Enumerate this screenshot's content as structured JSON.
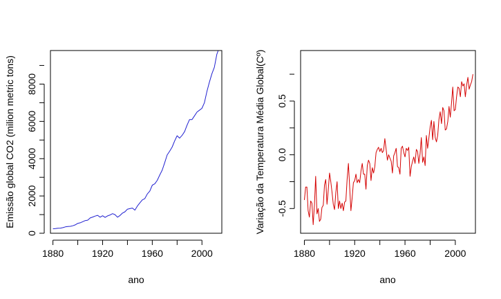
{
  "chart_data": [
    {
      "type": "line",
      "xlabel": "ano",
      "ylabel": "Emissão global CO2 (milion metric tons)",
      "xlim": [
        1878,
        2016
      ],
      "ylim": [
        0,
        9800
      ],
      "x_ticks": [
        1880,
        1920,
        1960,
        2000
      ],
      "x_tick_labels": [
        "1880",
        "1920",
        "1960",
        "2000"
      ],
      "y_ticks": [
        0,
        2000,
        4000,
        6000,
        8000
      ],
      "y_tick_labels": [
        "0",
        "2000",
        "4000",
        "6000",
        "8000"
      ],
      "series": [
        {
          "color": "#1f1fd0",
          "x": [
            1880,
            1882,
            1884,
            1886,
            1888,
            1890,
            1892,
            1894,
            1896,
            1898,
            1900,
            1902,
            1904,
            1906,
            1908,
            1910,
            1912,
            1914,
            1916,
            1918,
            1920,
            1922,
            1924,
            1926,
            1928,
            1930,
            1932,
            1934,
            1936,
            1938,
            1940,
            1942,
            1944,
            1946,
            1948,
            1950,
            1952,
            1954,
            1956,
            1958,
            1960,
            1962,
            1964,
            1966,
            1968,
            1970,
            1972,
            1974,
            1976,
            1978,
            1980,
            1982,
            1984,
            1986,
            1988,
            1990,
            1992,
            1994,
            1996,
            1998,
            2000,
            2002,
            2004,
            2006,
            2008,
            2010,
            2012,
            2013
          ],
          "values": [
            236,
            250,
            270,
            275,
            300,
            340,
            360,
            370,
            400,
            450,
            530,
            560,
            620,
            680,
            700,
            820,
            870,
            920,
            960,
            860,
            940,
            850,
            930,
            980,
            1050,
            1000,
            860,
            950,
            1080,
            1150,
            1290,
            1320,
            1350,
            1240,
            1460,
            1630,
            1790,
            1860,
            2110,
            2260,
            2580,
            2650,
            2840,
            3120,
            3380,
            3780,
            4200,
            4400,
            4620,
            4950,
            5230,
            5100,
            5250,
            5450,
            5800,
            6100,
            6100,
            6300,
            6500,
            6600,
            6700,
            7000,
            7600,
            8100,
            8550,
            8900,
            9600,
            9780
          ]
        }
      ]
    },
    {
      "type": "line",
      "xlabel": "ano",
      "ylabel": "Variação da Temperatura Média Global(Cº)",
      "xlim": [
        1877,
        2016
      ],
      "ylim": [
        -0.73,
        0.97
      ],
      "x_ticks": [
        1880,
        1920,
        1960,
        2000
      ],
      "x_tick_labels": [
        "1880",
        "1920",
        "1960",
        "2000"
      ],
      "y_ticks": [
        -0.5,
        0.0,
        0.5
      ],
      "y_tick_labels": [
        "-0.5",
        "0.0",
        "0.5"
      ],
      "series": [
        {
          "color": "#d40000",
          "x": [
            1880,
            1881,
            1882,
            1883,
            1884,
            1885,
            1886,
            1887,
            1888,
            1889,
            1890,
            1891,
            1892,
            1893,
            1894,
            1895,
            1896,
            1897,
            1898,
            1899,
            1900,
            1901,
            1902,
            1903,
            1904,
            1905,
            1906,
            1907,
            1908,
            1909,
            1910,
            1911,
            1912,
            1913,
            1914,
            1915,
            1916,
            1917,
            1918,
            1919,
            1920,
            1921,
            1922,
            1923,
            1924,
            1925,
            1926,
            1927,
            1928,
            1929,
            1930,
            1931,
            1932,
            1933,
            1934,
            1935,
            1936,
            1937,
            1938,
            1939,
            1940,
            1941,
            1942,
            1943,
            1944,
            1945,
            1946,
            1947,
            1948,
            1949,
            1950,
            1951,
            1952,
            1953,
            1954,
            1955,
            1956,
            1957,
            1958,
            1959,
            1960,
            1961,
            1962,
            1963,
            1964,
            1965,
            1966,
            1967,
            1968,
            1969,
            1970,
            1971,
            1972,
            1973,
            1974,
            1975,
            1976,
            1977,
            1978,
            1979,
            1980,
            1981,
            1982,
            1983,
            1984,
            1985,
            1986,
            1987,
            1988,
            1989,
            1990,
            1991,
            1992,
            1993,
            1994,
            1995,
            1996,
            1997,
            1998,
            1999,
            2000,
            2001,
            2002,
            2003,
            2004,
            2005,
            2006,
            2007,
            2008,
            2009,
            2010,
            2011,
            2012,
            2013,
            2014
          ],
          "values": [
            -0.42,
            -0.3,
            -0.3,
            -0.52,
            -0.58,
            -0.43,
            -0.45,
            -0.65,
            -0.47,
            -0.2,
            -0.55,
            -0.5,
            -0.62,
            -0.6,
            -0.49,
            -0.47,
            -0.28,
            -0.23,
            -0.46,
            -0.33,
            -0.17,
            -0.25,
            -0.35,
            -0.46,
            -0.51,
            -0.35,
            -0.25,
            -0.5,
            -0.43,
            -0.5,
            -0.45,
            -0.52,
            -0.44,
            -0.43,
            -0.23,
            -0.08,
            -0.3,
            -0.52,
            -0.4,
            -0.26,
            -0.24,
            -0.18,
            -0.26,
            -0.23,
            -0.26,
            -0.15,
            -0.08,
            -0.18,
            -0.18,
            -0.32,
            -0.1,
            -0.05,
            -0.08,
            -0.24,
            -0.12,
            -0.17,
            -0.11,
            0.02,
            0.05,
            0.07,
            0.03,
            0.06,
            0.02,
            0.04,
            0.15,
            0.05,
            -0.05,
            0.0,
            -0.03,
            -0.06,
            -0.17,
            -0.01,
            0.02,
            0.06,
            -0.11,
            -0.12,
            -0.18,
            0.06,
            0.08,
            0.02,
            -0.02,
            0.06,
            0.04,
            0.07,
            -0.2,
            -0.11,
            -0.06,
            -0.02,
            -0.08,
            0.05,
            0.03,
            -0.08,
            0.01,
            0.16,
            -0.07,
            -0.02,
            -0.1,
            0.18,
            0.06,
            0.16,
            0.26,
            0.32,
            0.14,
            0.31,
            0.16,
            0.12,
            0.18,
            0.33,
            0.4,
            0.29,
            0.44,
            0.41,
            0.23,
            0.24,
            0.31,
            0.45,
            0.35,
            0.48,
            0.63,
            0.41,
            0.42,
            0.54,
            0.63,
            0.62,
            0.54,
            0.68,
            0.64,
            0.66,
            0.54,
            0.65,
            0.72,
            0.61,
            0.65,
            0.68,
            0.75
          ]
        }
      ]
    }
  ]
}
